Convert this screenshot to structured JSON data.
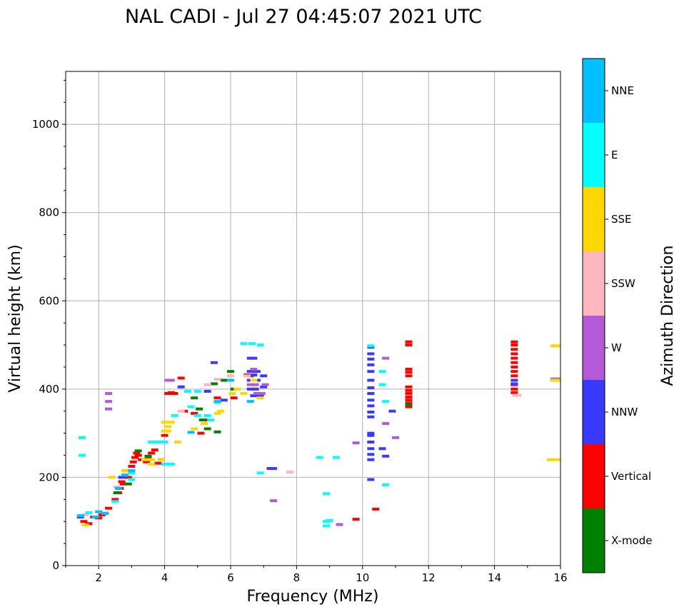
{
  "chart_data": {
    "type": "scatter",
    "title": "NAL CADI - Jul 27 04:45:07 2021 UTC",
    "xlabel": "Frequency (MHz)",
    "ylabel": "Virtual height (km)",
    "xlim": [
      1,
      16
    ],
    "ylim": [
      0,
      1120
    ],
    "xticks": [
      2,
      4,
      6,
      8,
      10,
      12,
      14,
      16
    ],
    "xtick_labels": [
      "2",
      "4",
      "6",
      "8",
      "10",
      "12",
      "14",
      "16"
    ],
    "yticks": [
      0,
      200,
      400,
      600,
      800,
      1000
    ],
    "ytick_labels": [
      "0",
      "200",
      "400",
      "600",
      "800",
      "1000"
    ],
    "grid": true,
    "colorbar": {
      "label": "Azimuth Direction",
      "categories": [
        {
          "name": "X-mode",
          "color": "#008000"
        },
        {
          "name": "Vertical",
          "color": "#ff0000"
        },
        {
          "name": "NNW",
          "color": "#3a3aff"
        },
        {
          "name": "W",
          "color": "#b45ad6"
        },
        {
          "name": "SSW",
          "color": "#ffb6c1"
        },
        {
          "name": "SSE",
          "color": "#ffd700"
        },
        {
          "name": "E",
          "color": "#00ffff"
        },
        {
          "name": "NNE",
          "color": "#00bfff"
        }
      ]
    },
    "series": [
      {
        "name": "Vertical",
        "points": [
          [
            1.55,
            100
          ],
          [
            1.7,
            95
          ],
          [
            1.85,
            110
          ],
          [
            2.0,
            108
          ],
          [
            2.1,
            115
          ],
          [
            2.3,
            130
          ],
          [
            2.5,
            150
          ],
          [
            2.6,
            165
          ],
          [
            2.65,
            175
          ],
          [
            2.7,
            190
          ],
          [
            2.75,
            185
          ],
          [
            2.8,
            205
          ],
          [
            2.85,
            215
          ],
          [
            2.9,
            200
          ],
          [
            3.0,
            225
          ],
          [
            3.05,
            235
          ],
          [
            3.1,
            245
          ],
          [
            3.15,
            255
          ],
          [
            3.2,
            250
          ],
          [
            3.3,
            240
          ],
          [
            3.45,
            235
          ],
          [
            3.5,
            245
          ],
          [
            3.6,
            255
          ],
          [
            3.7,
            262
          ],
          [
            3.8,
            232
          ],
          [
            3.9,
            240
          ],
          [
            4.0,
            295
          ],
          [
            4.1,
            390
          ],
          [
            4.2,
            392
          ],
          [
            4.3,
            390
          ],
          [
            4.5,
            425
          ],
          [
            4.6,
            350
          ],
          [
            4.9,
            345
          ],
          [
            5.1,
            300
          ],
          [
            5.3,
            330
          ],
          [
            5.6,
            380
          ],
          [
            6.1,
            380
          ],
          [
            6.5,
            432
          ],
          [
            6.6,
            430
          ],
          [
            6.9,
            385
          ],
          [
            9.8,
            105
          ],
          [
            10.4,
            128
          ],
          [
            11.4,
            360
          ],
          [
            11.4,
            368
          ],
          [
            11.4,
            375
          ],
          [
            11.4,
            382
          ],
          [
            11.4,
            390
          ],
          [
            11.4,
            397
          ],
          [
            11.4,
            405
          ],
          [
            11.4,
            430
          ],
          [
            11.4,
            438
          ],
          [
            11.4,
            445
          ],
          [
            11.4,
            500
          ],
          [
            11.4,
            507
          ],
          [
            14.6,
            392
          ],
          [
            14.6,
            400
          ],
          [
            14.6,
            410
          ],
          [
            14.6,
            430
          ],
          [
            14.6,
            440
          ],
          [
            14.6,
            450
          ],
          [
            14.6,
            460
          ],
          [
            14.6,
            470
          ],
          [
            14.6,
            480
          ],
          [
            14.6,
            490
          ],
          [
            14.6,
            500
          ],
          [
            14.6,
            507
          ]
        ]
      },
      {
        "name": "X-mode",
        "points": [
          [
            2.55,
            165
          ],
          [
            2.9,
            185
          ],
          [
            3.2,
            260
          ],
          [
            3.5,
            248
          ],
          [
            4.9,
            380
          ],
          [
            5.05,
            355
          ],
          [
            5.15,
            330
          ],
          [
            5.3,
            310
          ],
          [
            5.5,
            412
          ],
          [
            5.6,
            303
          ],
          [
            5.8,
            420
          ],
          [
            6.0,
            440
          ],
          [
            6.1,
            400
          ],
          [
            11.4,
            365
          ]
        ]
      },
      {
        "name": "NNW",
        "points": [
          [
            1.45,
            110
          ],
          [
            2.7,
            200
          ],
          [
            4.5,
            405
          ],
          [
            5.3,
            395
          ],
          [
            5.5,
            460
          ],
          [
            5.8,
            375
          ],
          [
            6.6,
            470
          ],
          [
            6.7,
            470
          ],
          [
            6.6,
            440
          ],
          [
            6.7,
            432
          ],
          [
            6.8,
            440
          ],
          [
            6.6,
            420
          ],
          [
            6.8,
            420
          ],
          [
            7.0,
            430
          ],
          [
            6.6,
            400
          ],
          [
            6.75,
            400
          ],
          [
            7.0,
            405
          ],
          [
            6.7,
            385
          ],
          [
            6.9,
            385
          ],
          [
            7.2,
            220
          ],
          [
            7.3,
            220
          ],
          [
            10.25,
            495
          ],
          [
            10.25,
            480
          ],
          [
            10.25,
            468
          ],
          [
            10.25,
            455
          ],
          [
            10.25,
            440
          ],
          [
            10.25,
            420
          ],
          [
            10.25,
            403
          ],
          [
            10.25,
            390
          ],
          [
            10.25,
            375
          ],
          [
            10.25,
            362
          ],
          [
            10.25,
            348
          ],
          [
            10.25,
            337
          ],
          [
            10.25,
            300
          ],
          [
            10.25,
            295
          ],
          [
            10.25,
            280
          ],
          [
            10.25,
            265
          ],
          [
            10.25,
            252
          ],
          [
            10.25,
            240
          ],
          [
            10.25,
            195
          ],
          [
            10.6,
            265
          ],
          [
            10.7,
            248
          ],
          [
            10.9,
            350
          ],
          [
            14.6,
            420
          ],
          [
            14.6,
            412
          ]
        ]
      },
      {
        "name": "W",
        "points": [
          [
            2.3,
            390
          ],
          [
            2.3,
            372
          ],
          [
            2.3,
            355
          ],
          [
            4.1,
            420
          ],
          [
            4.2,
            420
          ],
          [
            6.6,
            410
          ],
          [
            6.75,
            410
          ],
          [
            6.7,
            445
          ],
          [
            6.8,
            390
          ],
          [
            6.95,
            390
          ],
          [
            7.05,
            410
          ],
          [
            7.3,
            147
          ],
          [
            9.3,
            93
          ],
          [
            9.8,
            278
          ],
          [
            10.7,
            470
          ],
          [
            10.7,
            322
          ],
          [
            11.0,
            290
          ],
          [
            15.8,
            423
          ],
          [
            15.9,
            423
          ]
        ]
      },
      {
        "name": "SSW",
        "points": [
          [
            1.6,
            115
          ],
          [
            2.2,
            120
          ],
          [
            2.55,
            178
          ],
          [
            4.5,
            350
          ],
          [
            5.3,
            410
          ],
          [
            5.6,
            422
          ],
          [
            6.0,
            430
          ],
          [
            6.5,
            430
          ],
          [
            7.8,
            212
          ],
          [
            14.65,
            386
          ],
          [
            14.7,
            386
          ]
        ]
      },
      {
        "name": "SSE",
        "points": [
          [
            1.6,
            92
          ],
          [
            2.4,
            200
          ],
          [
            2.8,
            215
          ],
          [
            3.4,
            240
          ],
          [
            3.6,
            240
          ],
          [
            3.6,
            230
          ],
          [
            3.9,
            240
          ],
          [
            4.0,
            325
          ],
          [
            4.1,
            315
          ],
          [
            4.2,
            325
          ],
          [
            4.0,
            305
          ],
          [
            4.1,
            305
          ],
          [
            4.4,
            280
          ],
          [
            4.9,
            310
          ],
          [
            5.2,
            322
          ],
          [
            5.4,
            330
          ],
          [
            5.6,
            345
          ],
          [
            5.7,
            350
          ],
          [
            6.05,
            390
          ],
          [
            6.2,
            400
          ],
          [
            6.4,
            390
          ],
          [
            6.7,
            420
          ],
          [
            6.9,
            380
          ],
          [
            15.8,
            498
          ],
          [
            15.9,
            498
          ],
          [
            15.7,
            240
          ],
          [
            15.9,
            240
          ],
          [
            15.8,
            420
          ],
          [
            15.9,
            420
          ]
        ]
      },
      {
        "name": "E",
        "points": [
          [
            1.5,
            290
          ],
          [
            1.5,
            250
          ],
          [
            1.7,
            120
          ],
          [
            2.5,
            145
          ],
          [
            3.0,
            195
          ],
          [
            3.0,
            210
          ],
          [
            3.6,
            280
          ],
          [
            3.8,
            280
          ],
          [
            4.0,
            280
          ],
          [
            4.0,
            230
          ],
          [
            4.2,
            230
          ],
          [
            4.3,
            340
          ],
          [
            4.7,
            395
          ],
          [
            4.8,
            360
          ],
          [
            5.0,
            395
          ],
          [
            5.0,
            340
          ],
          [
            5.3,
            340
          ],
          [
            5.4,
            330
          ],
          [
            5.6,
            370
          ],
          [
            6.4,
            503
          ],
          [
            6.65,
            503
          ],
          [
            6.9,
            500
          ],
          [
            6.9,
            210
          ],
          [
            8.7,
            245
          ],
          [
            9.2,
            245
          ],
          [
            8.9,
            163
          ],
          [
            8.9,
            100
          ],
          [
            9.0,
            102
          ],
          [
            8.9,
            90
          ],
          [
            10.25,
            498
          ],
          [
            10.6,
            440
          ],
          [
            10.7,
            372
          ],
          [
            10.7,
            183
          ],
          [
            10.6,
            410
          ]
        ]
      },
      {
        "name": "NNE",
        "points": [
          [
            1.45,
            113
          ],
          [
            1.9,
            110
          ],
          [
            2.0,
            122
          ],
          [
            2.2,
            118
          ],
          [
            2.6,
            175
          ],
          [
            2.8,
            205
          ],
          [
            3.0,
            215
          ],
          [
            4.8,
            302
          ],
          [
            5.6,
            372
          ],
          [
            6.0,
            420
          ],
          [
            6.6,
            372
          ]
        ]
      }
    ]
  }
}
